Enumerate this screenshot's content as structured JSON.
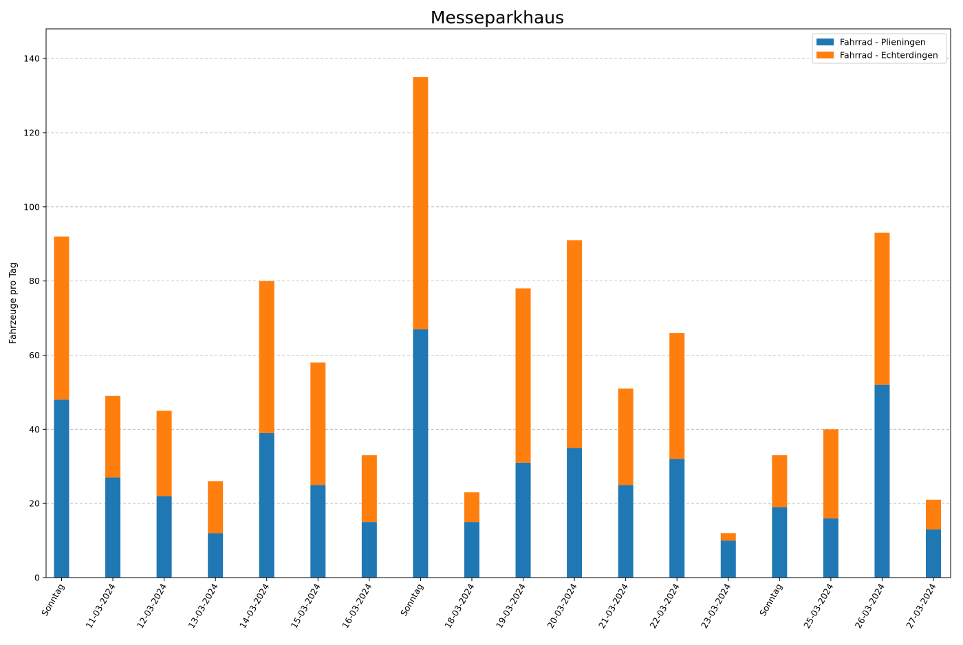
{
  "chart_data": {
    "type": "bar",
    "stacked": true,
    "title": "Messeparkhaus",
    "xlabel": "",
    "ylabel": "Fahrzeuge pro Tag",
    "ylim": [
      0,
      148
    ],
    "yticks": [
      0,
      20,
      40,
      60,
      80,
      100,
      120,
      140
    ],
    "grid": "y-dashed",
    "legend_position": "top-right",
    "categories": [
      "Sonntag",
      "11-03-2024",
      "12-03-2024",
      "13-03-2024",
      "14-03-2024",
      "15-03-2024",
      "16-03-2024",
      "Sonntag",
      "18-03-2024",
      "19-03-2024",
      "20-03-2024",
      "21-03-2024",
      "22-03-2024",
      "23-03-2024",
      "Sonntag",
      "25-03-2024",
      "26-03-2024",
      "27-03-2024"
    ],
    "series": [
      {
        "name": "Fahrrad - Plieningen",
        "color": "#1f77b4",
        "values": [
          48,
          27,
          22,
          12,
          39,
          25,
          15,
          67,
          15,
          31,
          35,
          25,
          32,
          10,
          19,
          16,
          52,
          13
        ]
      },
      {
        "name": "Fahrrad - Echterdingen",
        "color": "#ff7f0e",
        "values": [
          44,
          22,
          23,
          14,
          41,
          33,
          18,
          68,
          8,
          47,
          56,
          26,
          34,
          2,
          14,
          24,
          41,
          8
        ]
      }
    ]
  }
}
